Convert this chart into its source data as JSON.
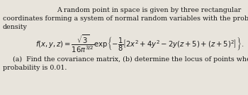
{
  "background_color": "#e8e4dc",
  "text_color": "#1a1a1a",
  "line1": "A random point in space is given by three rectangular",
  "line2": "coordinates forming a system of normal random variables with the probability",
  "line3": "density",
  "formula": "$f(x, y, z) = \\dfrac{\\sqrt{3}}{16\\pi^{3/2}} \\exp\\!\\left\\{-\\dfrac{1}{8}\\left[2x^2 + 4y^2 - 2y(z+5) + (z+5)^2\\right]\\right\\}.$",
  "line4": "(a)  Find the covariance matrix, (b) determine the locus of points when the",
  "line5": "probability is 0.01.",
  "fs_text": 6.8,
  "fs_formula": 7.2
}
